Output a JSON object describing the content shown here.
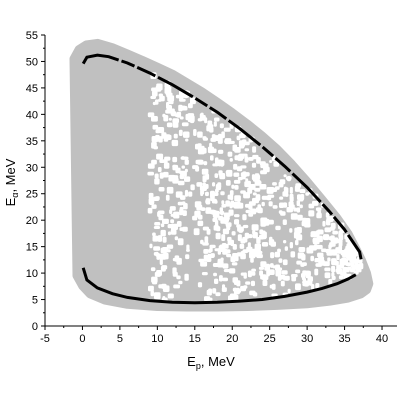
{
  "chart_data": {
    "type": "scatter",
    "xlabel": {
      "main": "E",
      "sub": "p",
      "unit": ", MeV"
    },
    "ylabel": {
      "main": "E",
      "sub": "α",
      "unit": ", MeV"
    },
    "xlim": [
      -5,
      42
    ],
    "ylim": [
      0,
      55
    ],
    "x_ticks": [
      "-5",
      "0",
      "5",
      "10",
      "15",
      "20",
      "25",
      "30",
      "35",
      "40"
    ],
    "y_ticks": [
      "0",
      "5",
      "10",
      "15",
      "20",
      "25",
      "30",
      "35",
      "40",
      "45",
      "50",
      "55"
    ],
    "grid": false,
    "colors": {
      "region": "#c0c0c0",
      "holes": "#ffffff",
      "curve": "#000000",
      "axis": "#000000"
    },
    "series": [
      {
        "kind": "filled-region",
        "x": [
          -1.2,
          -0.5,
          0.5,
          2,
          4,
          6,
          8,
          10,
          12,
          14,
          16,
          18,
          20,
          22,
          24,
          26,
          28,
          30,
          32,
          34,
          35.5,
          36.5,
          37.3,
          38,
          38.3,
          38,
          37.2,
          35.5,
          33,
          30,
          26,
          22,
          18,
          14,
          10,
          6,
          3,
          1,
          0,
          -0.8,
          -1.2
        ],
        "y": [
          50.5,
          52.3,
          53.2,
          53.5,
          52.7,
          51.5,
          50.3,
          49,
          47.7,
          46,
          44.3,
          42.4,
          40.4,
          38.3,
          36,
          33.5,
          30.6,
          27.4,
          24,
          20.5,
          17.5,
          14.8,
          12.5,
          10,
          8,
          6.8,
          6,
          5.2,
          4.6,
          4.1,
          3.8,
          3.6,
          3.5,
          3.5,
          3.6,
          4,
          4.8,
          6,
          7.5,
          9.5,
          50.5
        ]
      },
      {
        "kind": "upper-curve",
        "x": [
          0.1,
          0.6,
          2,
          3.5,
          6,
          9,
          12,
          15,
          18,
          21,
          24,
          27,
          30,
          33,
          35,
          36.3,
          37,
          37.2
        ],
        "y": [
          49.6,
          50.8,
          51.2,
          50.9,
          49.7,
          47.8,
          45.6,
          43.1,
          40.4,
          37.3,
          33.9,
          30.2,
          26.2,
          21.6,
          18.2,
          15.5,
          14,
          12.6
        ]
      },
      {
        "kind": "lower-curve",
        "x": [
          0.1,
          0.6,
          2,
          4,
          6,
          9,
          12,
          15,
          18,
          21,
          24,
          27,
          30,
          32,
          34,
          35.5,
          36.5
        ],
        "y": [
          11,
          8.7,
          7.2,
          6.1,
          5.4,
          4.8,
          4.5,
          4.4,
          4.5,
          4.7,
          5.0,
          5.6,
          6.4,
          7.1,
          8.0,
          8.9,
          9.7
        ]
      }
    ]
  }
}
